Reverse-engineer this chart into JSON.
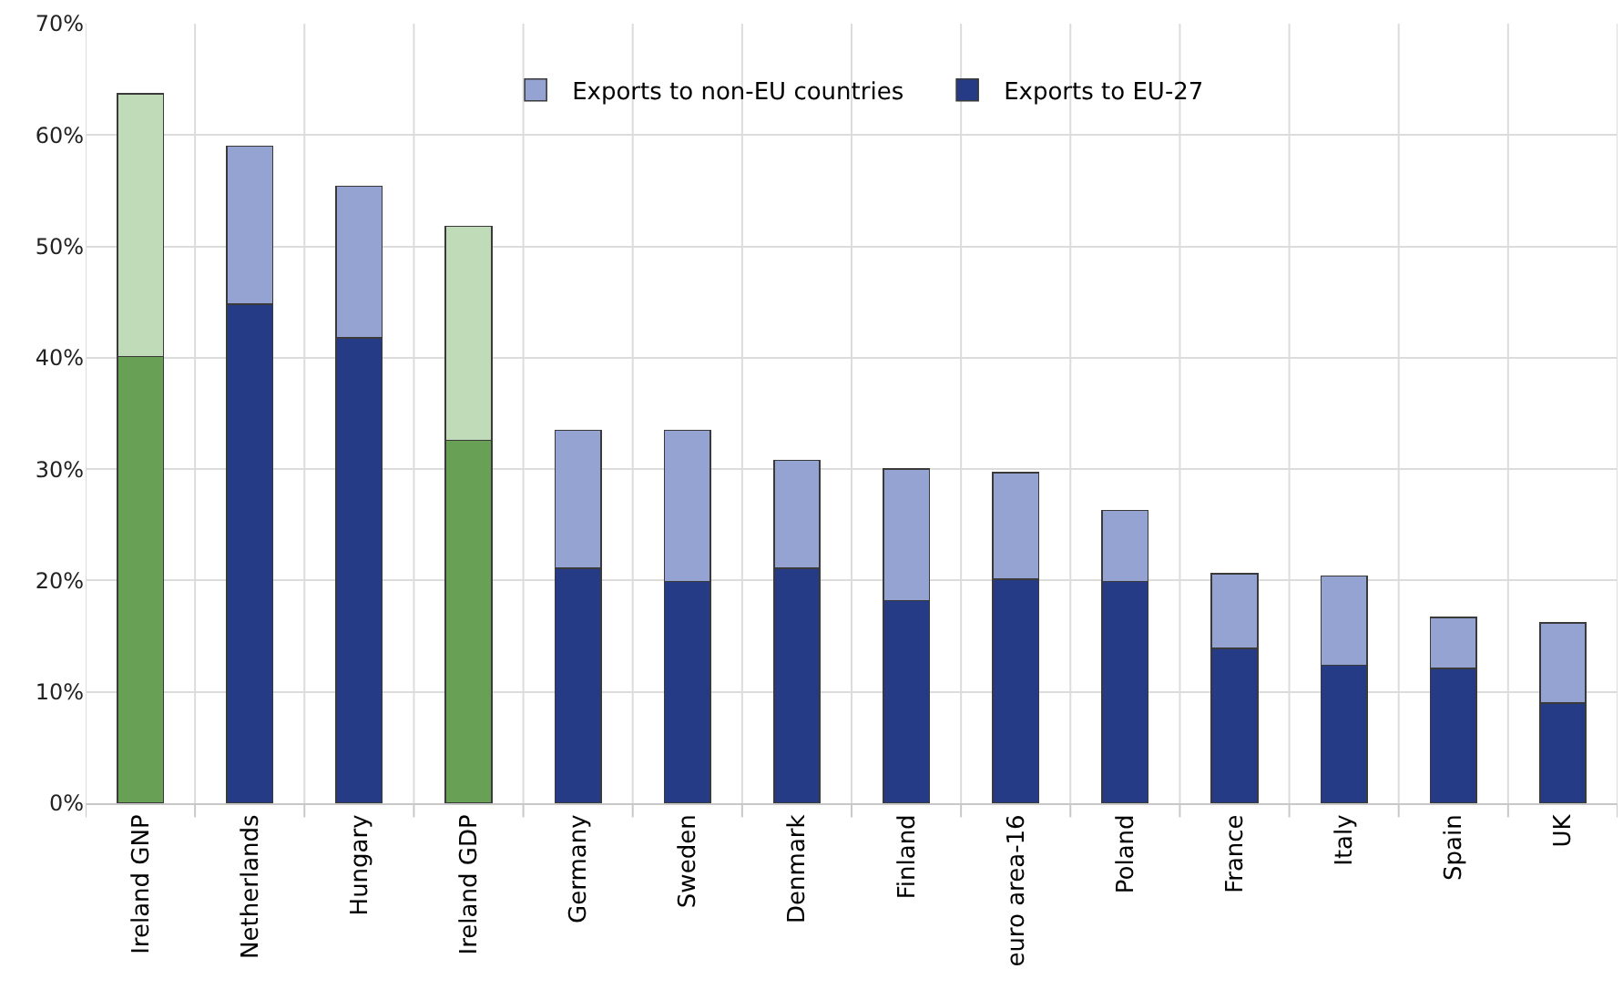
{
  "chart_data": {
    "type": "bar",
    "stacked": true,
    "categories": [
      "Ireland GNP",
      "Netherlands",
      "Hungary",
      "Ireland GDP",
      "Germany",
      "Sweden",
      "Denmark",
      "Finland",
      "euro area-16",
      "Poland",
      "France",
      "Italy",
      "Spain",
      "UK"
    ],
    "series": [
      {
        "name": "Exports to EU-27",
        "color": "#253b85",
        "colors": [
          "#68a055",
          "#253b85",
          "#253b85",
          "#68a055",
          "#253b85",
          "#253b85",
          "#253b85",
          "#253b85",
          "#253b85",
          "#253b85",
          "#253b85",
          "#253b85",
          "#253b85",
          "#253b85"
        ],
        "values": [
          40.1,
          44.8,
          41.8,
          32.6,
          21.1,
          19.9,
          21.1,
          18.2,
          20.1,
          19.9,
          13.9,
          12.4,
          12.1,
          9.0
        ]
      },
      {
        "name": "Exports to non-EU countries",
        "color": "#95a3d3",
        "colors": [
          "#c0dbb8",
          "#95a3d3",
          "#95a3d3",
          "#c0dbb8",
          "#95a3d3",
          "#95a3d3",
          "#95a3d3",
          "#95a3d3",
          "#95a3d3",
          "#95a3d3",
          "#95a3d3",
          "#95a3d3",
          "#95a3d3",
          "#95a3d3"
        ],
        "values": [
          23.6,
          14.2,
          13.6,
          19.2,
          12.4,
          13.6,
          9.7,
          11.8,
          9.6,
          6.4,
          6.7,
          8.0,
          4.6,
          7.2
        ]
      }
    ],
    "ylim": [
      0,
      70
    ],
    "yticks": [
      {
        "value": 0,
        "label": "0%"
      },
      {
        "value": 10,
        "label": "10%"
      },
      {
        "value": 20,
        "label": "20%"
      },
      {
        "value": 30,
        "label": "30%"
      },
      {
        "value": 40,
        "label": "40%"
      },
      {
        "value": 50,
        "label": "50%"
      },
      {
        "value": 60,
        "label": "60%"
      },
      {
        "value": 70,
        "label": "70%"
      }
    ],
    "grid": true,
    "legend": "top"
  }
}
